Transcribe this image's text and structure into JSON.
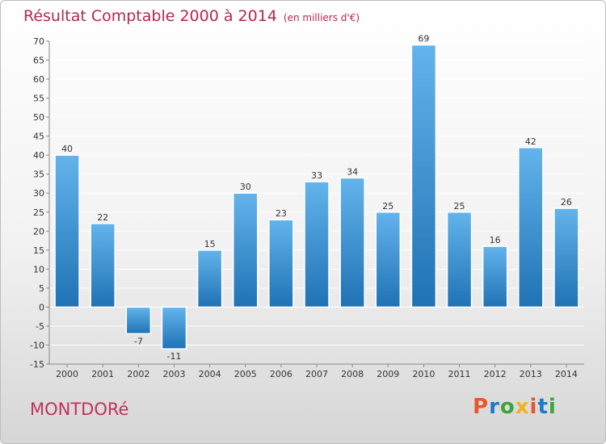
{
  "header": {
    "title": "Résultat Comptable 2000 à 2014",
    "subtitle": "(en milliers d'€)"
  },
  "footer": {
    "commune": "MONTDORé"
  },
  "logo": {
    "text": "Proxiti",
    "letter_colors": [
      "#e8572c",
      "#1f78c8",
      "#3ba53b",
      "#f0b420",
      "#e8572c",
      "#1f78c8",
      "#3ba53b"
    ]
  },
  "colors": {
    "title": "#b5284e",
    "bar_top": "#63b4ec",
    "bar_bottom": "#1f72b4",
    "grid": "#ffffff",
    "axis": "#888888"
  },
  "chart_data": {
    "type": "bar",
    "categories": [
      "2000",
      "2001",
      "2002",
      "2003",
      "2004",
      "2005",
      "2006",
      "2007",
      "2008",
      "2009",
      "2010",
      "2011",
      "2012",
      "2013",
      "2014"
    ],
    "values": [
      40,
      22,
      -7,
      -11,
      15,
      30,
      23,
      33,
      34,
      25,
      69,
      25,
      16,
      42,
      26
    ],
    "ylim": [
      -15,
      70
    ],
    "yticks": [
      -15,
      -10,
      -5,
      0,
      5,
      10,
      15,
      20,
      25,
      30,
      35,
      40,
      45,
      50,
      55,
      60,
      65,
      70
    ],
    "grid": true,
    "data_labels": true
  }
}
